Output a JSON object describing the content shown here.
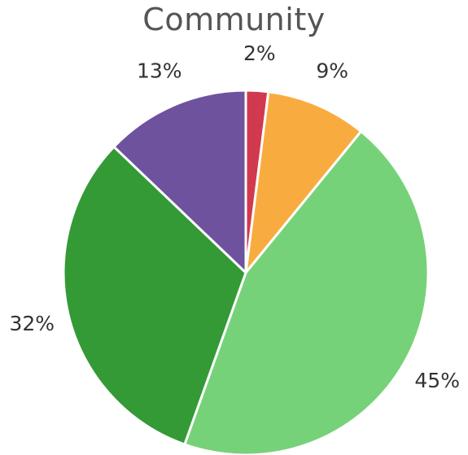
{
  "chart_data": {
    "type": "pie",
    "title": "Community",
    "slices": [
      {
        "label": "2%",
        "value": 2,
        "color": "#d1394f"
      },
      {
        "label": "9%",
        "value": 9,
        "color": "#f8ac3f"
      },
      {
        "label": "45%",
        "value": 45,
        "color": "#76d279"
      },
      {
        "label": "32%",
        "value": 32,
        "color": "#339a36"
      },
      {
        "label": "13%",
        "value": 13,
        "color": "#6f529e"
      }
    ],
    "start_angle": "12 o'clock",
    "direction": "clockwise"
  }
}
